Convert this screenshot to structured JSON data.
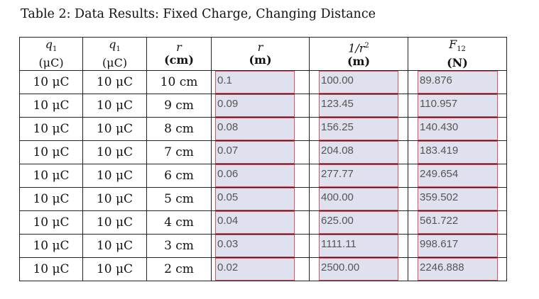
{
  "caption": "Table 2: Data Results: Fixed Charge, Changing Distance",
  "headers": [
    {
      "sym": "q",
      "sub": "1",
      "unit": "(μC)"
    },
    {
      "sym": "q",
      "sub": "1",
      "unit": "(μC)"
    },
    {
      "sym": "r",
      "sub": "",
      "unit": "(cm)"
    },
    {
      "sym": "r",
      "sub": "",
      "unit": "(m)"
    },
    {
      "sym": "1/r",
      "sup": "2",
      "unit": "(m)"
    },
    {
      "sym": "F",
      "sub": "12",
      "unit": "(N)"
    }
  ],
  "rows": [
    {
      "q1": "10 μC",
      "q2": "10 μC",
      "r_cm": "10 cm",
      "r_m": "0.1",
      "inv_r2": "100.00",
      "f12": "89.876"
    },
    {
      "q1": "10 μC",
      "q2": "10 μC",
      "r_cm": "9 cm",
      "r_m": "0.09",
      "inv_r2": "123.45",
      "f12": "110.957"
    },
    {
      "q1": "10 μC",
      "q2": "10 μC",
      "r_cm": "8 cm",
      "r_m": "0.08",
      "inv_r2": "156.25",
      "f12": "140.430"
    },
    {
      "q1": "10 μC",
      "q2": "10 μC",
      "r_cm": "7 cm",
      "r_m": "0.07",
      "inv_r2": "204.08",
      "f12": "183.419"
    },
    {
      "q1": "10 μC",
      "q2": "10 μC",
      "r_cm": "6 cm",
      "r_m": "0.06",
      "inv_r2": "277.77",
      "f12": "249.654"
    },
    {
      "q1": "10 μC",
      "q2": "10 μC",
      "r_cm": "5 cm",
      "r_m": "0.05",
      "inv_r2": "400.00",
      "f12": "359.502"
    },
    {
      "q1": "10 μC",
      "q2": "10 μC",
      "r_cm": "4 cm",
      "r_m": "0.04",
      "inv_r2": "625.00",
      "f12": "561.722"
    },
    {
      "q1": "10 μC",
      "q2": "10 μC",
      "r_cm": "3 cm",
      "r_m": "0.03",
      "inv_r2": "1111.11",
      "f12": "998.617"
    },
    {
      "q1": "10 μC",
      "q2": "10 μC",
      "r_cm": "2 cm",
      "r_m": "0.02",
      "inv_r2": "2500.00",
      "f12": "2246.888"
    }
  ],
  "colors": {
    "field_bg": "#dfe1ee",
    "field_border": "#e34f5f"
  }
}
